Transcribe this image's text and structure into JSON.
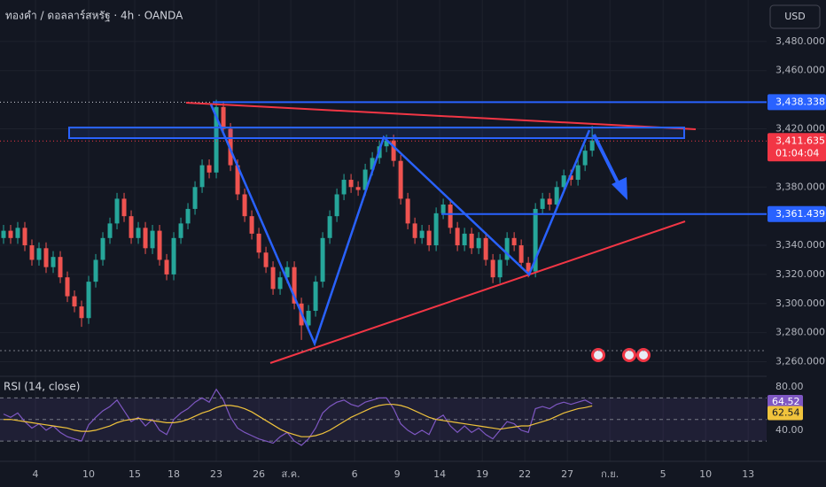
{
  "header": {
    "symbol": "ทองคำ / ดอลลาร์สหรัฐ · 4h · OANDA",
    "currency": "USD"
  },
  "chart_data": [
    {
      "type": "candlestick",
      "x": [
        0,
        1,
        2,
        3,
        4,
        5,
        6,
        7,
        8,
        9,
        10,
        11,
        12,
        13,
        14,
        15,
        16,
        17,
        18,
        19,
        20,
        21,
        22,
        23,
        24,
        25,
        26,
        27,
        28,
        29,
        30,
        31,
        32,
        33,
        34,
        35,
        36,
        37,
        38,
        39,
        40,
        41,
        42,
        43,
        44,
        45,
        46,
        47,
        48,
        49,
        50,
        51,
        52,
        53,
        54,
        55,
        56,
        57,
        58,
        59,
        60,
        61,
        62,
        63,
        64,
        65,
        66,
        67,
        68,
        69,
        70,
        71,
        72,
        73,
        74,
        75,
        76,
        77,
        78,
        79,
        80,
        81,
        82,
        83
      ],
      "open": [
        3345,
        3350,
        3345,
        3352,
        3340,
        3330,
        3338,
        3325,
        3332,
        3318,
        3305,
        3298,
        3290,
        3315,
        3330,
        3345,
        3355,
        3372,
        3360,
        3345,
        3352,
        3338,
        3350,
        3330,
        3320,
        3345,
        3355,
        3365,
        3380,
        3395,
        3390,
        3435,
        3420,
        3395,
        3375,
        3360,
        3348,
        3335,
        3325,
        3310,
        3318,
        3325,
        3300,
        3285,
        3295,
        3315,
        3345,
        3360,
        3375,
        3385,
        3380,
        3378,
        3392,
        3400,
        3408,
        3412,
        3398,
        3372,
        3355,
        3345,
        3350,
        3340,
        3362,
        3368,
        3352,
        3340,
        3348,
        3338,
        3345,
        3330,
        3318,
        3330,
        3345,
        3340,
        3328,
        3322,
        3365,
        3372,
        3368,
        3380,
        3388,
        3385,
        3395,
        3405
      ],
      "high": [
        3354,
        3354,
        3356,
        3356,
        3344,
        3342,
        3342,
        3336,
        3336,
        3322,
        3309,
        3302,
        3319,
        3334,
        3349,
        3359,
        3376,
        3376,
        3364,
        3356,
        3356,
        3354,
        3354,
        3334,
        3349,
        3359,
        3369,
        3384,
        3399,
        3399,
        3440,
        3439,
        3424,
        3399,
        3379,
        3364,
        3352,
        3339,
        3329,
        3322,
        3329,
        3329,
        3304,
        3299,
        3319,
        3349,
        3364,
        3379,
        3389,
        3389,
        3384,
        3396,
        3404,
        3412,
        3416,
        3416,
        3402,
        3376,
        3359,
        3354,
        3354,
        3366,
        3372,
        3372,
        3356,
        3352,
        3352,
        3349,
        3349,
        3334,
        3334,
        3349,
        3349,
        3344,
        3332,
        3369,
        3376,
        3376,
        3384,
        3392,
        3392,
        3399,
        3409,
        3422
      ],
      "low": [
        3341,
        3341,
        3341,
        3336,
        3326,
        3326,
        3321,
        3321,
        3314,
        3301,
        3294,
        3284,
        3286,
        3311,
        3326,
        3341,
        3351,
        3356,
        3341,
        3341,
        3334,
        3334,
        3326,
        3316,
        3316,
        3341,
        3351,
        3361,
        3376,
        3386,
        3386,
        3416,
        3391,
        3371,
        3356,
        3344,
        3331,
        3321,
        3306,
        3306,
        3314,
        3296,
        3275,
        3281,
        3291,
        3311,
        3341,
        3356,
        3371,
        3376,
        3374,
        3374,
        3388,
        3396,
        3404,
        3394,
        3368,
        3351,
        3341,
        3341,
        3336,
        3336,
        3358,
        3348,
        3336,
        3336,
        3334,
        3334,
        3326,
        3314,
        3314,
        3326,
        3336,
        3324,
        3318,
        3318,
        3361,
        3364,
        3364,
        3376,
        3381,
        3381,
        3391,
        3401
      ],
      "close": [
        3350,
        3345,
        3352,
        3340,
        3330,
        3338,
        3325,
        3332,
        3318,
        3305,
        3298,
        3290,
        3315,
        3330,
        3345,
        3355,
        3372,
        3360,
        3345,
        3352,
        3338,
        3350,
        3330,
        3320,
        3345,
        3355,
        3365,
        3380,
        3395,
        3390,
        3435,
        3420,
        3395,
        3375,
        3360,
        3348,
        3335,
        3325,
        3310,
        3318,
        3325,
        3300,
        3285,
        3295,
        3315,
        3345,
        3360,
        3375,
        3385,
        3380,
        3378,
        3392,
        3400,
        3408,
        3412,
        3398,
        3372,
        3355,
        3345,
        3350,
        3340,
        3362,
        3368,
        3352,
        3340,
        3348,
        3338,
        3345,
        3330,
        3318,
        3330,
        3345,
        3340,
        3328,
        3322,
        3365,
        3372,
        3368,
        3380,
        3388,
        3385,
        3395,
        3405,
        3412
      ],
      "up_color": "#26a69a",
      "down_color": "#ef5350",
      "xlim": [
        -0.5,
        107.6
      ],
      "ylim": [
        3250,
        3508.5
      ],
      "xticks": [
        {
          "value": 4.5,
          "label": "4"
        },
        {
          "value": 12,
          "label": "10"
        },
        {
          "value": 18.5,
          "label": "15"
        },
        {
          "value": 24,
          "label": "18"
        },
        {
          "value": 30,
          "label": "23"
        },
        {
          "value": 36,
          "label": "26"
        },
        {
          "value": 40.5,
          "label": "ส.ค."
        },
        {
          "value": 49.5,
          "label": "6"
        },
        {
          "value": 55.5,
          "label": "9"
        },
        {
          "value": 61.5,
          "label": "14"
        },
        {
          "value": 67.5,
          "label": "19"
        },
        {
          "value": 73.5,
          "label": "22"
        },
        {
          "value": 79.5,
          "label": "27"
        },
        {
          "value": 85.5,
          "label": "ก.ย."
        },
        {
          "value": 93,
          "label": "5"
        },
        {
          "value": 99,
          "label": "10"
        },
        {
          "value": 105,
          "label": "13"
        }
      ],
      "yticks": [
        {
          "value": 3480,
          "label": "3,480.000"
        },
        {
          "value": 3460,
          "label": "3,460.000"
        },
        {
          "value": 3420,
          "label": "3,420.000"
        },
        {
          "value": 3380,
          "label": "3,380.000"
        },
        {
          "value": 3340,
          "label": "3,340.000"
        },
        {
          "value": 3320,
          "label": "3,320.000"
        },
        {
          "value": 3300,
          "label": "3,300.000"
        },
        {
          "value": 3280,
          "label": "3,280.000"
        },
        {
          "value": 3260,
          "label": "3,260.000"
        }
      ],
      "levels": [
        {
          "value": 3438.338,
          "label": "3,438.338",
          "color": "#2962ff"
        },
        {
          "value": 3411.635,
          "label": "3,411.635",
          "timer": "01:04:04",
          "color": "#f23645"
        },
        {
          "value": 3361.439,
          "label": "3,361.439",
          "color": "#2962ff"
        }
      ],
      "grid": true
    },
    {
      "type": "line",
      "series": [
        {
          "name": "RSI (14, close)",
          "color": "#7e57c2",
          "values": [
            55,
            52,
            56,
            48,
            42,
            46,
            40,
            44,
            38,
            34,
            32,
            30,
            45,
            52,
            58,
            62,
            68,
            58,
            48,
            52,
            44,
            50,
            40,
            36,
            50,
            56,
            60,
            66,
            70,
            66,
            78,
            68,
            52,
            42,
            38,
            35,
            32,
            30,
            28,
            34,
            38,
            30,
            26,
            32,
            42,
            56,
            62,
            66,
            68,
            64,
            62,
            66,
            68,
            70,
            70,
            60,
            46,
            40,
            36,
            40,
            36,
            50,
            54,
            44,
            38,
            44,
            38,
            42,
            36,
            32,
            40,
            48,
            46,
            40,
            38,
            60,
            62,
            60,
            64,
            66,
            64,
            66,
            68,
            64.52
          ]
        },
        {
          "color": "#f0c33c",
          "values": [
            50,
            50,
            49,
            48,
            47,
            46,
            45,
            44,
            43,
            42,
            40,
            39,
            39,
            40,
            42,
            44,
            47,
            49,
            50,
            51,
            50,
            49,
            48,
            47,
            47,
            48,
            50,
            53,
            56,
            58,
            61,
            63,
            63,
            62,
            60,
            57,
            53,
            49,
            45,
            41,
            38,
            36,
            34,
            34,
            35,
            37,
            40,
            44,
            48,
            52,
            55,
            58,
            61,
            63,
            64,
            64,
            63,
            61,
            58,
            55,
            52,
            50,
            49,
            48,
            47,
            46,
            45,
            44,
            43,
            42,
            41,
            42,
            43,
            44,
            44,
            46,
            48,
            50,
            53,
            56,
            58,
            60,
            61,
            62.54
          ]
        }
      ],
      "ylim": [
        12,
        90
      ],
      "yticks": [
        {
          "value": 80,
          "label": "80.00"
        },
        {
          "value": 40,
          "label": "40.00"
        }
      ],
      "bands": [
        70,
        50,
        30
      ]
    }
  ]
}
